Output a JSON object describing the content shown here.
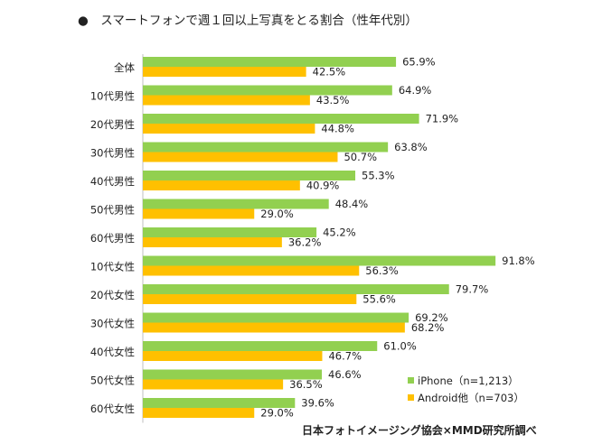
{
  "page_title": "●　スマートフォンで週１回以上写真をとる割合（性年代別）",
  "source": "日本フォトイメージング協会×MMD研究所調べ",
  "colors": {
    "iphone": "#92d050",
    "android": "#ffc000"
  },
  "chart_data": {
    "type": "bar",
    "orientation": "horizontal",
    "title": "スマートフォンで週１回以上写真をとる割合（性年代別）",
    "xlim": [
      0,
      100
    ],
    "categories": [
      "全体",
      "10代男性",
      "20代男性",
      "30代男性",
      "40代男性",
      "50代男性",
      "60代男性",
      "10代女性",
      "20代女性",
      "30代女性",
      "40代女性",
      "50代女性",
      "60代女性"
    ],
    "series": [
      {
        "name": "iPhone（n=1,213）",
        "values": [
          65.9,
          64.9,
          71.9,
          63.8,
          55.3,
          48.4,
          45.2,
          91.8,
          79.7,
          69.2,
          61.0,
          46.6,
          39.6
        ],
        "labels": [
          "65.9%",
          "64.9%",
          "71.9%",
          "63.8%",
          "55.3%",
          "48.4%",
          "45.2%",
          "91.8%",
          "79.7%",
          "69.2%",
          "61.0%",
          "46.6%",
          "39.6%"
        ]
      },
      {
        "name": "Android他（n=703）",
        "values": [
          42.5,
          43.5,
          44.8,
          50.7,
          40.9,
          29.0,
          36.2,
          56.3,
          55.6,
          68.2,
          46.7,
          36.5,
          29.0
        ],
        "labels": [
          "42.5%",
          "43.5%",
          "44.8%",
          "50.7%",
          "40.9%",
          "29.0%",
          "36.2%",
          "56.3%",
          "55.6%",
          "68.2%",
          "46.7%",
          "36.5%",
          "29.0%"
        ]
      }
    ]
  }
}
